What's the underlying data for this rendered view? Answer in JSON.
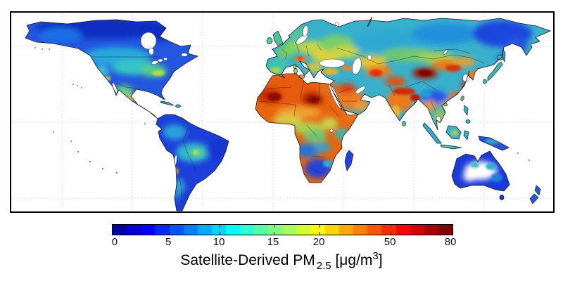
{
  "figure": {
    "background_color": "#ffffff",
    "frame_color": "#000000",
    "ocean_color": "#ffffff",
    "gridline_color": "#c4c4c4",
    "coastline_color": "#1a1a1a"
  },
  "colorbar": {
    "border_color": "#000000",
    "segments": [
      "#0000AA",
      "#0000D5",
      "#0000FF",
      "#002BFF",
      "#0055FF",
      "#0080FF",
      "#00AAFF",
      "#00D5FF",
      "#00FFFF",
      "#2BFFD5",
      "#55FFAA",
      "#80FF80",
      "#AAFF55",
      "#D5FF2B",
      "#FFFF00",
      "#FFD500",
      "#FFAA00",
      "#FF8000",
      "#FF5500",
      "#FF2B00",
      "#FF0000",
      "#D50000",
      "#AA0000",
      "#800000"
    ],
    "ticks": [
      {
        "label": "0",
        "pos": 0.008
      },
      {
        "label": "5",
        "pos": 0.166
      },
      {
        "label": "10",
        "pos": 0.315
      },
      {
        "label": "15",
        "pos": 0.474
      },
      {
        "label": "20",
        "pos": 0.609
      },
      {
        "label": "50",
        "pos": 0.818
      },
      {
        "label": "80",
        "pos": 0.996
      }
    ]
  },
  "caption": {
    "main": "Satellite-Derived PM",
    "sub": "2.5",
    "mid": " [μg/m",
    "sup": "3",
    "end": "]"
  },
  "chart_data": {
    "type": "heatmap",
    "title": "Satellite-Derived PM2.5 [μg/m3]",
    "colorbar": {
      "tick_values": [
        0,
        5,
        10,
        15,
        20,
        50,
        80
      ],
      "range": [
        0,
        80
      ],
      "unit": "μg/m3",
      "colormap": "jet (dark blue → blue → cyan → green → yellow → orange → red → dark red), 24 discrete segments",
      "scale_note": "non-linear: ticks evenly spaced 0-20, compressed spacing for 20-50-80",
      "legend_position": "bottom center"
    },
    "map": {
      "extent": "world map approx 180W-180E, 75N-55S, dotted graticule, white oceans",
      "no_data_white": [
        "oceans",
        "Greenland",
        "central Australia patches",
        "Atacama strip"
      ],
      "region_values_ug_m3": [
        {
          "region": "Eastern China (North China Plain)",
          "pm25": 80
        },
        {
          "region": "Taklamakan Desert / Tarim Basin",
          "pm25": 70
        },
        {
          "region": "West Sahara / Mali and Bodele depression (Chad)",
          "pm25": 65
        },
        {
          "region": "Indo-Gangetic Plain (N India / Bangladesh)",
          "pm25": 55
        },
        {
          "region": "Middle East / Mesopotamia / Arabian Peninsula",
          "pm25": 40
        },
        {
          "region": "Sahel belt",
          "pm25": 30
        },
        {
          "region": "Po Valley (N Italy)",
          "pm25": 30
        },
        {
          "region": "Central Asia (Uzbekistan / Afghanistan)",
          "pm25": 35
        },
        {
          "region": "Gobi / Mongolia south",
          "pm25": 35
        },
        {
          "region": "Eastern Europe / Ukraine",
          "pm25": 20
        },
        {
          "region": "Mexico (central)",
          "pm25": 18
        },
        {
          "region": "Central Africa (Congo basin edges)",
          "pm25": 15
        },
        {
          "region": "Southeast Asia / Indochina",
          "pm25": 15
        },
        {
          "region": "Western Europe",
          "pm25": 12
        },
        {
          "region": "Eastern United States / Midwest",
          "pm25": 12
        },
        {
          "region": "Amazon interior green patch",
          "pm25": 10
        },
        {
          "region": "Santiago, Chile hotspot",
          "pm25": 20
        },
        {
          "region": "Siberia",
          "pm25": 6
        },
        {
          "region": "Canada / Alaska",
          "pm25": 4
        },
        {
          "region": "South America (most)",
          "pm25": 4
        },
        {
          "region": "Southern Africa",
          "pm25": 5
        },
        {
          "region": "Australia",
          "pm25": 3
        },
        {
          "region": "Tibetan Plateau (low patch)",
          "pm25": 5
        }
      ]
    }
  }
}
